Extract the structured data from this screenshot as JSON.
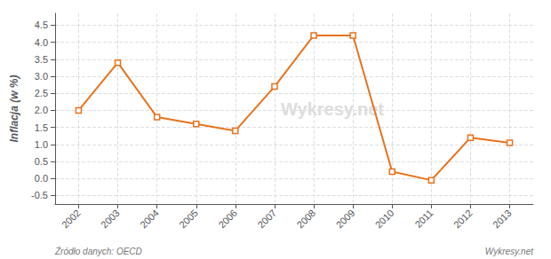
{
  "chart_data": {
    "type": "line",
    "x": [
      2002,
      2003,
      2004,
      2005,
      2006,
      2007,
      2008,
      2009,
      2010,
      2011,
      2012,
      2013
    ],
    "values": [
      2.0,
      3.4,
      1.8,
      1.6,
      1.4,
      2.7,
      4.2,
      4.2,
      0.2,
      -0.05,
      1.2,
      1.05
    ],
    "color": "#E8721C",
    "marker": "square",
    "ylabel": "Inflacja (w %)",
    "annotations": [
      "Wykresy.net",
      "Źródło danych: OECD",
      "Wykresy.net"
    ],
    "xlim": [
      2001.4,
      2013.6
    ],
    "xticks": [
      2002,
      2003,
      2004,
      2005,
      2006,
      2007,
      2008,
      2009,
      2010,
      2011,
      2012,
      2013
    ],
    "ylim": [
      -0.75,
      4.85
    ],
    "yticks": [
      -0.5,
      {
        "value": 0,
        "label": "0.0"
      },
      0.5,
      {
        "value": 1,
        "label": "1.0"
      },
      1.5,
      {
        "value": 2,
        "label": "2.0"
      },
      2.5,
      {
        "value": 3,
        "label": "3.0"
      },
      3.5,
      {
        "value": 4,
        "label": "4.0"
      },
      4.5
    ],
    "grid": true
  }
}
